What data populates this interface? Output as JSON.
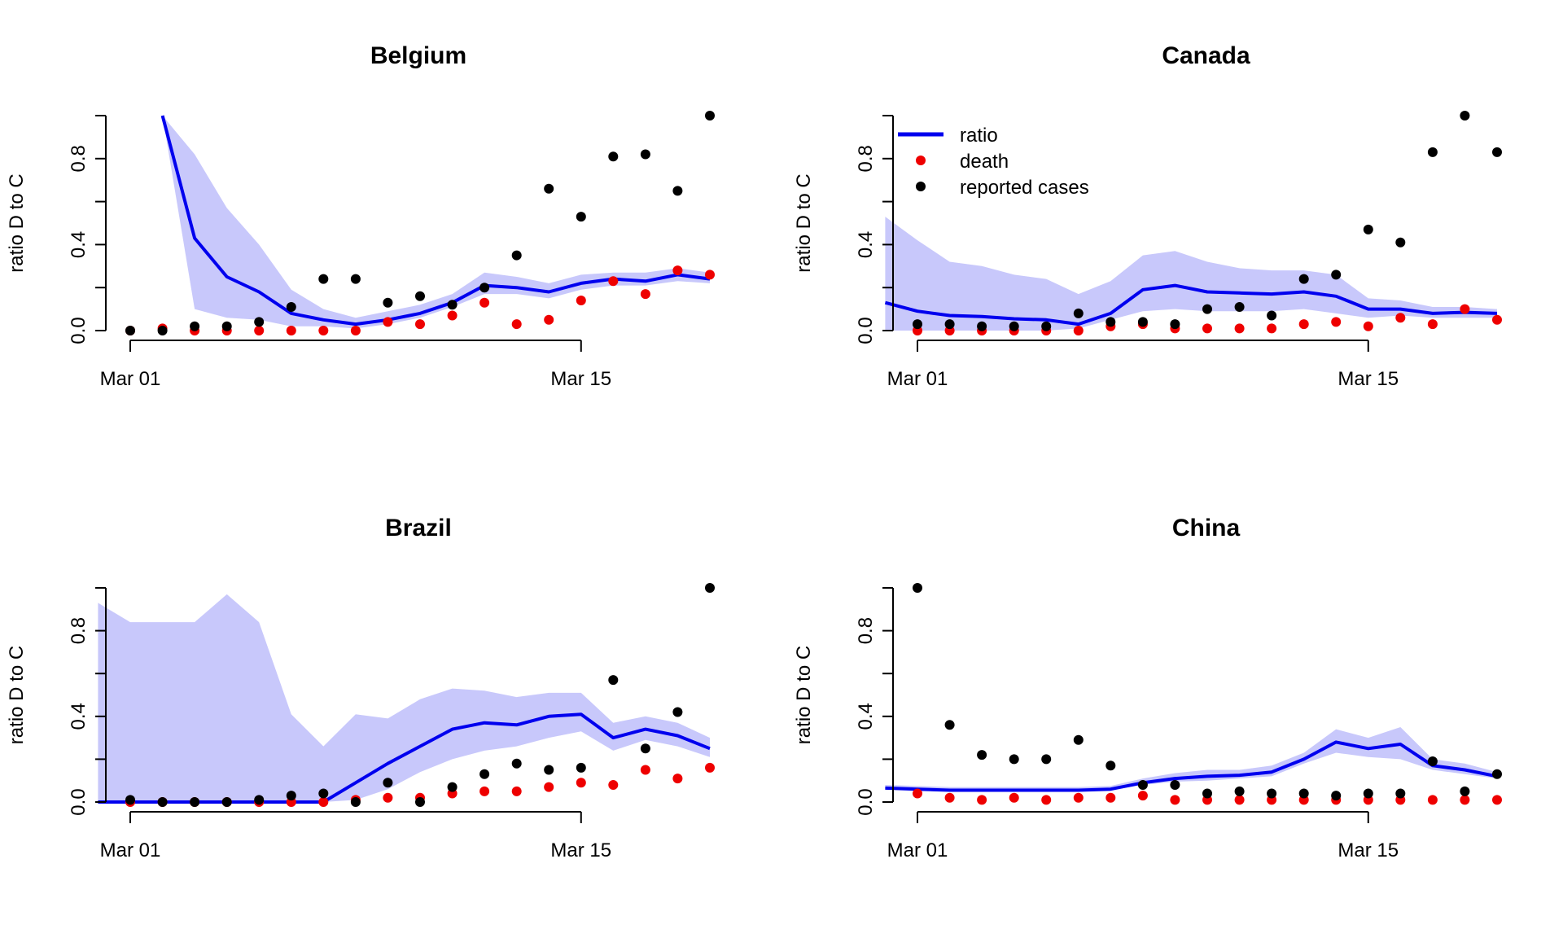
{
  "colors": {
    "ratio_line": "#0000ee",
    "band": "#c8c8fb",
    "death": "#ee0000",
    "cases": "#000000"
  },
  "legend": {
    "items": [
      {
        "label": "ratio",
        "kind": "line",
        "color": "#0000ee"
      },
      {
        "label": "death",
        "kind": "point",
        "color": "#ee0000"
      },
      {
        "label": "reported cases",
        "kind": "point",
        "color": "#000000"
      }
    ]
  },
  "chart_data": [
    {
      "type": "line",
      "title": "Belgium",
      "ylabel": "ratio D to C",
      "xlim": [
        "2020-03-01",
        "2020-03-19"
      ],
      "ylim": [
        0,
        1
      ],
      "yticks": [
        0.0,
        0.4,
        0.8
      ],
      "ytick_labels": [
        "0.0",
        "0.4",
        "0.8"
      ],
      "xticks": [
        "2020-03-01",
        "2020-03-15"
      ],
      "xtick_labels": [
        "Mar 01",
        "Mar 15"
      ],
      "line_x": [
        "2020-03-02",
        "2020-03-03",
        "2020-03-04",
        "2020-03-05",
        "2020-03-06",
        "2020-03-07",
        "2020-03-08",
        "2020-03-09",
        "2020-03-10",
        "2020-03-11",
        "2020-03-12",
        "2020-03-13",
        "2020-03-14",
        "2020-03-15",
        "2020-03-16",
        "2020-03-17",
        "2020-03-18",
        "2020-03-19"
      ],
      "series": [
        {
          "name": "ratio",
          "kind": "line",
          "values": [
            1.0,
            0.43,
            0.25,
            0.18,
            0.08,
            0.05,
            0.03,
            0.05,
            0.08,
            0.13,
            0.21,
            0.2,
            0.18,
            0.22,
            0.24,
            0.23,
            0.26,
            0.24
          ]
        },
        {
          "name": "ratio interval",
          "kind": "band",
          "lower": [
            1.0,
            0.1,
            0.06,
            0.05,
            0.02,
            0.02,
            0.01,
            0.03,
            0.06,
            0.11,
            0.17,
            0.17,
            0.15,
            0.19,
            0.21,
            0.21,
            0.23,
            0.22
          ],
          "upper": [
            1.0,
            0.82,
            0.57,
            0.4,
            0.19,
            0.1,
            0.06,
            0.09,
            0.12,
            0.17,
            0.27,
            0.25,
            0.22,
            0.26,
            0.27,
            0.27,
            0.29,
            0.27
          ]
        },
        {
          "name": "death",
          "kind": "points",
          "x_offset_days": 0,
          "values": [
            0.0,
            0.01,
            0.0,
            0.0,
            0.0,
            0.0,
            0.0,
            0.0,
            0.04,
            0.03,
            0.07,
            0.13,
            0.03,
            0.05,
            0.14,
            0.23,
            0.17,
            0.28,
            0.26
          ]
        },
        {
          "name": "reported cases",
          "kind": "points",
          "values": [
            0.0,
            0.0,
            0.02,
            0.02,
            0.04,
            0.11,
            0.24,
            0.24,
            0.13,
            0.16,
            0.12,
            0.2,
            0.35,
            0.66,
            0.53,
            0.81,
            0.82,
            0.65,
            1.0
          ]
        }
      ]
    },
    {
      "type": "line",
      "title": "Canada",
      "ylabel": "ratio D to C",
      "legend": true,
      "xlim": [
        "2020-03-01",
        "2020-03-19"
      ],
      "ylim": [
        0,
        1
      ],
      "yticks": [
        0.0,
        0.4,
        0.8
      ],
      "ytick_labels": [
        "0.0",
        "0.4",
        "0.8"
      ],
      "xticks": [
        "2020-03-01",
        "2020-03-15"
      ],
      "xtick_labels": [
        "Mar 01",
        "Mar 15"
      ],
      "line_x": [
        "2020-02-29",
        "2020-03-01",
        "2020-03-02",
        "2020-03-03",
        "2020-03-04",
        "2020-03-05",
        "2020-03-06",
        "2020-03-07",
        "2020-03-08",
        "2020-03-09",
        "2020-03-10",
        "2020-03-11",
        "2020-03-12",
        "2020-03-13",
        "2020-03-14",
        "2020-03-15",
        "2020-03-16",
        "2020-03-17",
        "2020-03-18",
        "2020-03-19"
      ],
      "series": [
        {
          "name": "ratio",
          "kind": "line",
          "values": [
            0.13,
            0.09,
            0.07,
            0.065,
            0.055,
            0.05,
            0.03,
            0.08,
            0.19,
            0.21,
            0.18,
            0.175,
            0.17,
            0.18,
            0.16,
            0.1,
            0.1,
            0.08,
            0.085,
            0.08
          ]
        },
        {
          "name": "ratio interval",
          "kind": "band",
          "lower": [
            0.0,
            0.0,
            0.0,
            0.0,
            0.0,
            0.0,
            0.01,
            0.05,
            0.09,
            0.1,
            0.09,
            0.09,
            0.09,
            0.1,
            0.08,
            0.06,
            0.07,
            0.06,
            0.06,
            0.06
          ],
          "upper": [
            0.53,
            0.42,
            0.32,
            0.3,
            0.26,
            0.24,
            0.17,
            0.23,
            0.35,
            0.37,
            0.32,
            0.29,
            0.28,
            0.28,
            0.26,
            0.15,
            0.14,
            0.11,
            0.11,
            0.1
          ]
        },
        {
          "name": "death",
          "kind": "points",
          "values": [
            0.0,
            0.0,
            0.0,
            0.0,
            0.0,
            0.0,
            0.02,
            0.03,
            0.01,
            0.01,
            0.01,
            0.01,
            0.03,
            0.04,
            0.02,
            0.06,
            0.03,
            0.1,
            0.05
          ]
        },
        {
          "name": "reported cases",
          "kind": "points",
          "values": [
            0.03,
            0.03,
            0.02,
            0.02,
            0.02,
            0.08,
            0.04,
            0.04,
            0.03,
            0.1,
            0.11,
            0.07,
            0.24,
            0.26,
            0.47,
            0.41,
            0.83,
            1.0,
            0.83
          ]
        }
      ]
    },
    {
      "type": "line",
      "title": "Brazil",
      "ylabel": "ratio D to C",
      "xlim": [
        "2020-03-01",
        "2020-03-19"
      ],
      "ylim": [
        0,
        1
      ],
      "yticks": [
        0.0,
        0.4,
        0.8
      ],
      "ytick_labels": [
        "0.0",
        "0.4",
        "0.8"
      ],
      "xticks": [
        "2020-03-01",
        "2020-03-15"
      ],
      "xtick_labels": [
        "Mar 01",
        "Mar 15"
      ],
      "line_x": [
        "2020-02-29",
        "2020-03-01",
        "2020-03-02",
        "2020-03-03",
        "2020-03-04",
        "2020-03-05",
        "2020-03-06",
        "2020-03-07",
        "2020-03-08",
        "2020-03-09",
        "2020-03-10",
        "2020-03-11",
        "2020-03-12",
        "2020-03-13",
        "2020-03-14",
        "2020-03-15",
        "2020-03-16",
        "2020-03-17",
        "2020-03-18",
        "2020-03-19"
      ],
      "series": [
        {
          "name": "ratio",
          "kind": "line",
          "values": [
            0,
            0,
            0,
            0,
            0,
            0,
            0,
            0,
            0.09,
            0.18,
            0.26,
            0.34,
            0.37,
            0.36,
            0.4,
            0.41,
            0.3,
            0.34,
            0.31,
            0.25
          ]
        },
        {
          "name": "ratio interval",
          "kind": "band",
          "lower": [
            0,
            0,
            0,
            0,
            0,
            0,
            0,
            0,
            0.01,
            0.06,
            0.14,
            0.2,
            0.24,
            0.26,
            0.3,
            0.33,
            0.24,
            0.29,
            0.26,
            0.21
          ],
          "upper": [
            0.93,
            0.84,
            0.84,
            0.84,
            0.97,
            0.84,
            0.41,
            0.26,
            0.41,
            0.39,
            0.48,
            0.53,
            0.52,
            0.49,
            0.51,
            0.51,
            0.37,
            0.4,
            0.37,
            0.3
          ]
        },
        {
          "name": "death",
          "kind": "points",
          "values": [
            0.0,
            0.0,
            0.0,
            0.0,
            0.0,
            0.0,
            0.0,
            0.01,
            0.02,
            0.02,
            0.04,
            0.05,
            0.05,
            0.07,
            0.09,
            0.08,
            0.15,
            0.11,
            0.16
          ]
        },
        {
          "name": "reported cases",
          "kind": "points",
          "values": [
            0.01,
            0.0,
            0.0,
            0.0,
            0.01,
            0.03,
            0.04,
            0.0,
            0.09,
            0.0,
            0.07,
            0.13,
            0.18,
            0.15,
            0.16,
            0.57,
            0.25,
            0.42,
            1.0
          ]
        }
      ]
    },
    {
      "type": "line",
      "title": "China",
      "ylabel": "ratio D to C",
      "xlim": [
        "2020-03-01",
        "2020-03-19"
      ],
      "ylim": [
        0,
        1
      ],
      "yticks": [
        0.0,
        0.4,
        0.8
      ],
      "ytick_labels": [
        "0.0",
        "0.4",
        "0.8"
      ],
      "xticks": [
        "2020-03-01",
        "2020-03-15"
      ],
      "xtick_labels": [
        "Mar 01",
        "Mar 15"
      ],
      "line_x": [
        "2020-02-29",
        "2020-03-01",
        "2020-03-02",
        "2020-03-03",
        "2020-03-04",
        "2020-03-05",
        "2020-03-06",
        "2020-03-07",
        "2020-03-08",
        "2020-03-09",
        "2020-03-10",
        "2020-03-11",
        "2020-03-12",
        "2020-03-13",
        "2020-03-14",
        "2020-03-15",
        "2020-03-16",
        "2020-03-17",
        "2020-03-18",
        "2020-03-19"
      ],
      "series": [
        {
          "name": "ratio",
          "kind": "line",
          "values": [
            0.065,
            0.06,
            0.055,
            0.055,
            0.055,
            0.055,
            0.055,
            0.06,
            0.09,
            0.11,
            0.12,
            0.125,
            0.14,
            0.2,
            0.28,
            0.25,
            0.27,
            0.17,
            0.15,
            0.12
          ]
        },
        {
          "name": "ratio interval",
          "kind": "band",
          "lower": [
            0.06,
            0.055,
            0.05,
            0.05,
            0.05,
            0.05,
            0.05,
            0.055,
            0.08,
            0.095,
            0.1,
            0.11,
            0.12,
            0.18,
            0.23,
            0.21,
            0.2,
            0.15,
            0.13,
            0.11
          ]
        },
        {
          "name": "death",
          "kind": "points",
          "values": [
            0.04,
            0.02,
            0.01,
            0.02,
            0.01,
            0.02,
            0.02,
            0.03,
            0.01,
            0.01,
            0.01,
            0.01,
            0.01,
            0.01,
            0.01,
            0.01,
            0.01,
            0.01,
            0.01
          ]
        },
        {
          "name": "reported cases",
          "kind": "points",
          "values": [
            1.0,
            0.36,
            0.22,
            0.2,
            0.2,
            0.29,
            0.17,
            0.08,
            0.08,
            0.04,
            0.05,
            0.04,
            0.04,
            0.03,
            0.04,
            0.04,
            0.19,
            0.05,
            0.13
          ]
        }
      ]
    }
  ]
}
